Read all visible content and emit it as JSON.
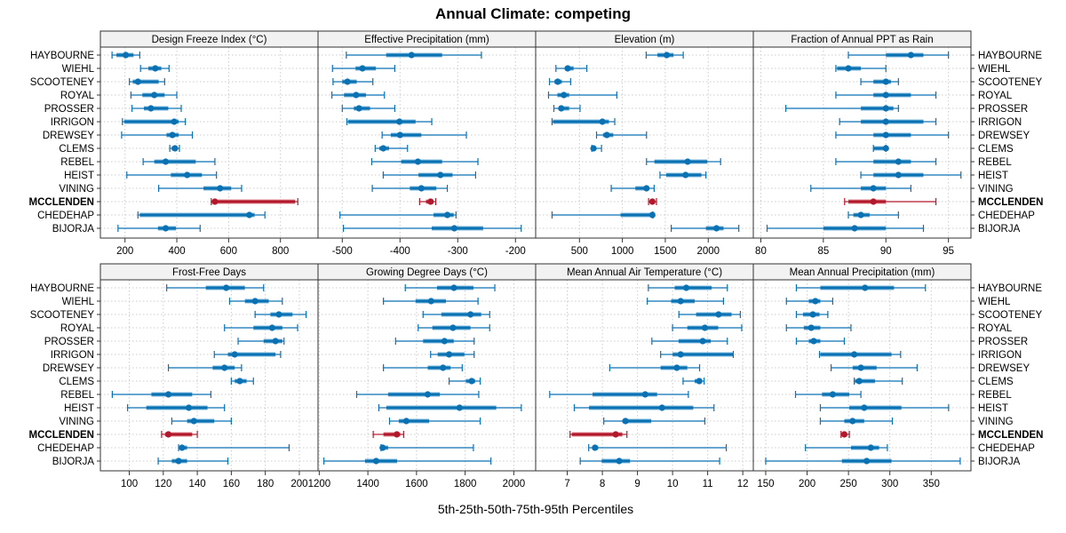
{
  "chart_data": {
    "type": "dotplot-interval",
    "title": "Annual Climate: competing",
    "xlabel": "5th-25th-50th-75th-95th Percentiles",
    "ylabel": "",
    "grid": true,
    "colors": {
      "default": "#0a71b3",
      "default_light": "#7fb9dc",
      "highlight": "#b2182b",
      "highlight_light": "#e08a92",
      "strip_bg": "#f2f2f2"
    },
    "highlight_site": "MCCLENDEN",
    "sites": [
      "HAYBOURNE",
      "WIEHL",
      "SCOOTENEY",
      "ROYAL",
      "PROSSER",
      "IRRIGON",
      "DREWSEY",
      "CLEMS",
      "REBEL",
      "HEIST",
      "VINING",
      "MCCLENDEN",
      "CHEDEHAP",
      "BIJORJA"
    ],
    "panels": [
      {
        "title": "Design Freeze Index (°C)",
        "xlim": [
          105,
          945
        ],
        "ticks": [
          200,
          400,
          600,
          800
        ],
        "tick_labels": [
          "200",
          "400",
          "600",
          "800"
        ],
        "data": [
          [
            150,
            167,
            203,
            233,
            257
          ],
          [
            260,
            290,
            317,
            340,
            370
          ],
          [
            217,
            230,
            250,
            330,
            353
          ],
          [
            223,
            267,
            313,
            353,
            400
          ],
          [
            227,
            273,
            300,
            367,
            417
          ],
          [
            190,
            197,
            390,
            407,
            433
          ],
          [
            187,
            360,
            383,
            407,
            460
          ],
          [
            373,
            380,
            393,
            400,
            410
          ],
          [
            270,
            313,
            357,
            473,
            547
          ],
          [
            207,
            377,
            440,
            497,
            553
          ],
          [
            330,
            503,
            567,
            610,
            650
          ],
          [
            533,
            540,
            547,
            857,
            867
          ],
          [
            250,
            257,
            680,
            700,
            740
          ],
          [
            173,
            327,
            357,
            397,
            490
          ]
        ]
      },
      {
        "title": "Effective Precipitation (mm)",
        "xlim": [
          -542,
          -165
        ],
        "ticks": [
          -500,
          -400,
          -300,
          -200
        ],
        "tick_labels": [
          "-500",
          "-400",
          "-300",
          "-200"
        ],
        "data": [
          [
            -493,
            -424,
            -380,
            -327,
            -259
          ],
          [
            -517,
            -477,
            -465,
            -442,
            -409
          ],
          [
            -516,
            -500,
            -491,
            -475,
            -447
          ],
          [
            -518,
            -497,
            -476,
            -459,
            -427
          ],
          [
            -500,
            -480,
            -471,
            -452,
            -409
          ],
          [
            -492,
            -490,
            -401,
            -373,
            -345
          ],
          [
            -431,
            -416,
            -400,
            -363,
            -285
          ],
          [
            -443,
            -436,
            -429,
            -419,
            -387
          ],
          [
            -449,
            -398,
            -369,
            -327,
            -265
          ],
          [
            -429,
            -368,
            -330,
            -309,
            -269
          ],
          [
            -448,
            -383,
            -363,
            -337,
            -318
          ],
          [
            -366,
            -355,
            -347,
            -342,
            -338
          ],
          [
            -504,
            -342,
            -318,
            -307,
            -303
          ],
          [
            -498,
            -345,
            -306,
            -256,
            -190
          ]
        ]
      },
      {
        "title": "Elevation (m)",
        "xlim": [
          -10,
          2525
        ],
        "ticks": [
          500,
          1000,
          1500,
          2000
        ],
        "tick_labels": [
          "500",
          "1000",
          "1500",
          "2000"
        ],
        "data": [
          [
            1277,
            1408,
            1517,
            1596,
            1709
          ],
          [
            226,
            329,
            363,
            432,
            586
          ],
          [
            151,
            209,
            247,
            295,
            397
          ],
          [
            140,
            243,
            318,
            380,
            935
          ],
          [
            202,
            260,
            288,
            380,
            507
          ],
          [
            181,
            192,
            767,
            843,
            911
          ],
          [
            699,
            774,
            819,
            894,
            1281
          ],
          [
            644,
            654,
            664,
            688,
            757
          ],
          [
            1281,
            1373,
            1760,
            1990,
            2144
          ],
          [
            1438,
            1510,
            1736,
            1921,
            1973
          ],
          [
            870,
            1151,
            1281,
            1305,
            1370
          ],
          [
            1305,
            1322,
            1349,
            1373,
            1397
          ],
          [
            181,
            979,
            1349,
            1349,
            1356
          ],
          [
            1569,
            1973,
            2096,
            2178,
            2356
          ]
        ]
      },
      {
        "title": "Fraction of Annual PPT as Rain",
        "xlim": [
          79.4,
          96.8
        ],
        "ticks": [
          80,
          85,
          90,
          95
        ],
        "tick_labels": [
          "80",
          "85",
          "90",
          "95"
        ],
        "data": [
          [
            87.0,
            90.0,
            92.0,
            93.0,
            95.0
          ],
          [
            86.0,
            86.1,
            87.0,
            88.0,
            90.0
          ],
          [
            88.0,
            89.0,
            90.0,
            90.4,
            91.0
          ],
          [
            86.0,
            89.0,
            90.0,
            92.0,
            94.0
          ],
          [
            82.0,
            88.0,
            90.0,
            90.6,
            91.0
          ],
          [
            86.3,
            88.0,
            90.0,
            93.0,
            94.0
          ],
          [
            86.0,
            89.0,
            90.0,
            92.0,
            95.0
          ],
          [
            89.0,
            89.0,
            90.0,
            90.0,
            90.0
          ],
          [
            86.0,
            89.0,
            91.0,
            92.0,
            94.0
          ],
          [
            88.0,
            89.0,
            91.0,
            93.0,
            96.0
          ],
          [
            84.0,
            88.0,
            89.0,
            90.0,
            92.0
          ],
          [
            86.7,
            87.0,
            89.0,
            90.0,
            94.0
          ],
          [
            87.0,
            87.4,
            88.0,
            88.7,
            91.0
          ],
          [
            80.5,
            85.0,
            87.5,
            90.0,
            93.0
          ]
        ]
      },
      {
        "title": "Frost-Free Days",
        "xlim": [
          83,
          211
        ],
        "ticks": [
          100,
          120,
          140,
          160,
          180,
          200
        ],
        "tick_labels": [
          "100",
          "120",
          "140",
          "160",
          "180",
          "200"
        ],
        "data": [
          [
            122,
            145,
            157,
            168,
            179
          ],
          [
            159,
            168,
            174,
            182,
            190
          ],
          [
            174,
            183,
            188,
            196,
            204
          ],
          [
            156,
            173,
            184,
            190,
            199
          ],
          [
            164,
            179,
            186,
            190,
            191
          ],
          [
            150,
            158,
            162,
            186,
            189
          ],
          [
            123,
            149,
            156,
            162,
            166
          ],
          [
            160,
            162,
            165,
            169,
            173
          ],
          [
            90,
            113,
            123,
            137,
            148
          ],
          [
            99,
            110,
            135,
            146,
            156
          ],
          [
            125,
            134,
            138,
            150,
            160
          ],
          [
            119,
            121,
            123,
            137,
            140
          ],
          [
            129,
            130,
            131,
            134,
            194
          ],
          [
            117,
            125,
            129,
            134,
            158
          ]
        ]
      },
      {
        "title": "Growing Degree Days (°C)",
        "xlim": [
          1195,
          2090
        ],
        "ticks": [
          1200,
          1400,
          1600,
          1800,
          2000
        ],
        "tick_labels": [
          "1200",
          "1400",
          "1600",
          "1800",
          "2000"
        ],
        "data": [
          [
            1554,
            1684,
            1754,
            1834,
            1922
          ],
          [
            1464,
            1596,
            1660,
            1721,
            1853
          ],
          [
            1627,
            1702,
            1822,
            1866,
            1901
          ],
          [
            1607,
            1665,
            1750,
            1822,
            1901
          ],
          [
            1514,
            1627,
            1715,
            1753,
            1837
          ],
          [
            1658,
            1687,
            1734,
            1797,
            1837
          ],
          [
            1464,
            1646,
            1709,
            1740,
            1788
          ],
          [
            1734,
            1803,
            1827,
            1841,
            1862
          ],
          [
            1354,
            1483,
            1646,
            1696,
            1856
          ],
          [
            1445,
            1476,
            1777,
            1928,
            2031
          ],
          [
            1489,
            1527,
            1558,
            1652,
            1862
          ],
          [
            1422,
            1464,
            1519,
            1533,
            1547
          ],
          [
            1454,
            1456,
            1461,
            1483,
            1834
          ],
          [
            1219,
            1388,
            1434,
            1520,
            1906
          ]
        ]
      },
      {
        "title": "Mean Annual Air Temperature (°C)",
        "xlim": [
          6.1,
          12.3
        ],
        "ticks": [
          7,
          8,
          9,
          10,
          11,
          12
        ],
        "tick_labels": [
          "7",
          "8",
          "9",
          "10",
          "11",
          "12"
        ],
        "data": [
          [
            9.31,
            10.06,
            10.39,
            11.11,
            11.56
          ],
          [
            9.28,
            9.96,
            10.23,
            10.63,
            11.45
          ],
          [
            10.18,
            10.67,
            11.31,
            11.68,
            11.93
          ],
          [
            10.0,
            10.42,
            10.92,
            11.3,
            11.97
          ],
          [
            9.41,
            10.17,
            10.86,
            11.09,
            11.56
          ],
          [
            9.66,
            10.0,
            10.23,
            11.72,
            11.73
          ],
          [
            8.21,
            9.66,
            10.12,
            10.42,
            10.77
          ],
          [
            10.3,
            10.63,
            10.76,
            10.84,
            10.9
          ],
          [
            6.5,
            7.72,
            9.22,
            9.56,
            10.45
          ],
          [
            7.2,
            7.62,
            9.7,
            10.59,
            11.18
          ],
          [
            8.04,
            8.57,
            8.66,
            9.39,
            10.92
          ],
          [
            7.08,
            7.13,
            8.38,
            8.57,
            8.7
          ],
          [
            7.61,
            7.72,
            7.79,
            7.88,
            11.53
          ],
          [
            7.37,
            7.98,
            8.48,
            8.79,
            11.34
          ]
        ]
      },
      {
        "title": "Mean Annual Precipitation (mm)",
        "xlim": [
          135,
          398
        ],
        "ticks": [
          150,
          200,
          250,
          300,
          350
        ],
        "tick_labels": [
          "150",
          "200",
          "250",
          "300",
          "350"
        ],
        "data": [
          [
            187,
            216,
            270,
            305,
            343
          ],
          [
            175,
            202,
            210,
            216,
            231
          ],
          [
            187,
            195,
            207,
            215,
            225
          ],
          [
            175,
            196,
            205,
            216,
            253
          ],
          [
            187,
            202,
            208,
            216,
            245
          ],
          [
            215,
            216,
            257,
            302,
            313
          ],
          [
            229,
            255,
            265,
            284,
            333
          ],
          [
            257,
            258,
            263,
            282,
            315
          ],
          [
            186,
            218,
            231,
            251,
            265
          ],
          [
            216,
            251,
            269,
            314,
            371
          ],
          [
            216,
            245,
            255,
            269,
            303
          ],
          [
            241,
            242,
            245,
            247,
            251
          ],
          [
            198,
            253,
            277,
            287,
            297
          ],
          [
            150,
            242,
            272,
            302,
            385
          ]
        ]
      }
    ]
  }
}
